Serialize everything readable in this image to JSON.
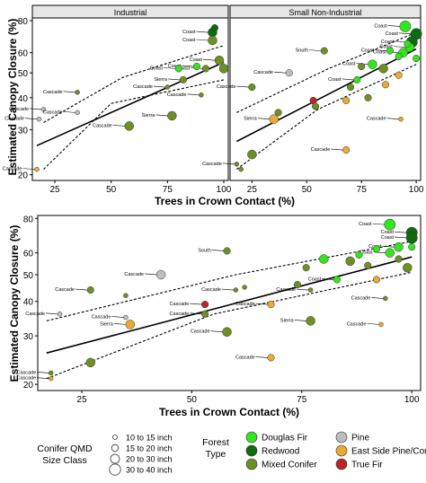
{
  "figure": {
    "ylabel": "Estimated Canopy Closure (%)",
    "xlabel": "Trees in Crown Contact (%)"
  },
  "colors": {
    "Douglas Fir": "#33e51f",
    "Redwood": "#0f6b0f",
    "Mixed Conifer": "#6f8f25",
    "Pine": "#bdbdbd",
    "East Side Pine/Con": "#e9a935",
    "True Fir": "#b8262a"
  },
  "legend": {
    "size_title": [
      "Conifer QMD",
      "Size Class"
    ],
    "size_items": [
      {
        "label": "10 to 15 inch",
        "r": 2.5
      },
      {
        "label": "15 to 20 inch",
        "r": 3.8
      },
      {
        "label": "20 to 30 inch",
        "r": 5.0
      },
      {
        "label": "30 to 40 inch",
        "r": 6.2
      }
    ],
    "type_title": [
      "Forest",
      "Type"
    ],
    "type_items": [
      "Douglas Fir",
      "Redwood",
      "Mixed Conifer",
      "Pine",
      "East Side Pine/Con",
      "True Fir"
    ]
  },
  "chart_data": [
    {
      "type": "scatter",
      "title": "Industrial",
      "x_ticks": [
        25,
        50,
        75,
        100
      ],
      "y_ticks": [
        20,
        30,
        40,
        50,
        60,
        80
      ],
      "xlim": [
        15,
        102
      ],
      "ylim": [
        19,
        82
      ],
      "y_scale": "log",
      "fit_line": [
        [
          17,
          26
        ],
        [
          100,
          55
        ]
      ],
      "ci_upper": [
        [
          20,
          32
        ],
        [
          55,
          48
        ],
        [
          100,
          64
        ]
      ],
      "ci_lower": [
        [
          20,
          21
        ],
        [
          50,
          38
        ],
        [
          100,
          47
        ]
      ],
      "points": [
        {
          "x": 95,
          "y": 72,
          "type": "Redwood",
          "size": 3,
          "label": "Coast"
        },
        {
          "x": 95,
          "y": 67,
          "type": "Mixed Conifer",
          "size": 3,
          "label": "Coast"
        },
        {
          "x": 96,
          "y": 75,
          "type": "Redwood",
          "size": 2,
          "label": ""
        },
        {
          "x": 98,
          "y": 56,
          "type": "Mixed Conifer",
          "size": 3,
          "label": "Coast"
        },
        {
          "x": 92,
          "y": 52,
          "type": "Mixed Conifer",
          "size": 2,
          "label": "Coast"
        },
        {
          "x": 88,
          "y": 53,
          "type": "Douglas Fir",
          "size": 2,
          "label": "Coast"
        },
        {
          "x": 100,
          "y": 52,
          "type": "Mixed Conifer",
          "size": 3,
          "label": ""
        },
        {
          "x": 80,
          "y": 52,
          "type": "Douglas Fir",
          "size": 2,
          "label": "Coast"
        },
        {
          "x": 82,
          "y": 47,
          "type": "Mixed Conifer",
          "size": 2,
          "label": "Sierra"
        },
        {
          "x": 75,
          "y": 44,
          "type": "Mixed Conifer",
          "size": 1,
          "label": "Cascade"
        },
        {
          "x": 90,
          "y": 41,
          "type": "Mixed Conifer",
          "size": 1,
          "label": "Cascade"
        },
        {
          "x": 35,
          "y": 42,
          "type": "Mixed Conifer",
          "size": 1,
          "label": "Cascade"
        },
        {
          "x": 20,
          "y": 36,
          "type": "Pine",
          "size": 1,
          "label": "Cascade"
        },
        {
          "x": 35,
          "y": 35,
          "type": "Pine",
          "size": 1,
          "label": "Cascade"
        },
        {
          "x": 18,
          "y": 33,
          "type": "Pine",
          "size": 1,
          "label": "Cascade"
        },
        {
          "x": 77,
          "y": 34,
          "type": "Mixed Conifer",
          "size": 3,
          "label": "Sierra"
        },
        {
          "x": 58,
          "y": 31,
          "type": "Mixed Conifer",
          "size": 3,
          "label": "Cascade"
        },
        {
          "x": 17,
          "y": 21,
          "type": "East Side Pine/Con",
          "size": 1,
          "label": "Cascade"
        }
      ]
    },
    {
      "type": "scatter",
      "title": "Small Non-Industrial",
      "x_ticks": [
        25,
        50,
        75,
        100
      ],
      "y_ticks": [
        20,
        30,
        40,
        50,
        60,
        80
      ],
      "xlim": [
        15,
        102
      ],
      "ylim": [
        19,
        82
      ],
      "y_scale": "log",
      "fit_line": [
        [
          18,
          27
        ],
        [
          100,
          62
        ]
      ],
      "ci_upper": [
        [
          18,
          35
        ],
        [
          60,
          52
        ],
        [
          100,
          72
        ]
      ],
      "ci_lower": [
        [
          18,
          21
        ],
        [
          55,
          36
        ],
        [
          100,
          54
        ]
      ],
      "points": [
        {
          "x": 95,
          "y": 76,
          "type": "Douglas Fir",
          "size": 4,
          "label": "Coast"
        },
        {
          "x": 100,
          "y": 71,
          "type": "Redwood",
          "size": 4,
          "label": "Coast"
        },
        {
          "x": 98,
          "y": 66,
          "type": "Redwood",
          "size": 4,
          "label": "Coast"
        },
        {
          "x": 97,
          "y": 63,
          "type": "Douglas Fir",
          "size": 3,
          "label": "Coast"
        },
        {
          "x": 94,
          "y": 60,
          "type": "Douglas Fir",
          "size": 3,
          "label": "Coast"
        },
        {
          "x": 88,
          "y": 61,
          "type": "Douglas Fir",
          "size": 2,
          "label": "Coast"
        },
        {
          "x": 96,
          "y": 65,
          "type": "Douglas Fir",
          "size": 2,
          "label": ""
        },
        {
          "x": 100,
          "y": 57,
          "type": "Douglas Fir",
          "size": 2,
          "label": ""
        },
        {
          "x": 92,
          "y": 58,
          "type": "Douglas Fir",
          "size": 2,
          "label": ""
        },
        {
          "x": 58,
          "y": 61,
          "type": "Mixed Conifer",
          "size": 2,
          "label": "South"
        },
        {
          "x": 42,
          "y": 50,
          "type": "Pine",
          "size": 2,
          "label": "Cascade"
        },
        {
          "x": 80,
          "y": 54,
          "type": "Douglas Fir",
          "size": 3,
          "label": "Coast"
        },
        {
          "x": 85,
          "y": 52,
          "type": "Mixed Conifer",
          "size": 3,
          "label": ""
        },
        {
          "x": 75,
          "y": 53,
          "type": "Mixed Conifer",
          "size": 2,
          "label": ""
        },
        {
          "x": 92,
          "y": 49,
          "type": "East Side Pine/Con",
          "size": 2,
          "label": ""
        },
        {
          "x": 73,
          "y": 47,
          "type": "Douglas Fir",
          "size": 2,
          "label": "Coast"
        },
        {
          "x": 70,
          "y": 44,
          "type": "Mixed Conifer",
          "size": 2,
          "label": ""
        },
        {
          "x": 86,
          "y": 45,
          "type": "East Side Pine/Con",
          "size": 2,
          "label": ""
        },
        {
          "x": 25,
          "y": 44,
          "type": "Mixed Conifer",
          "size": 2,
          "label": "Cascade"
        },
        {
          "x": 53,
          "y": 39,
          "type": "True Fir",
          "size": 2,
          "label": ""
        },
        {
          "x": 54,
          "y": 37,
          "type": "Mixed Conifer",
          "size": 2,
          "label": ""
        },
        {
          "x": 68,
          "y": 39,
          "type": "East Side Pine/Con",
          "size": 2,
          "label": ""
        },
        {
          "x": 78,
          "y": 40,
          "type": "Mixed Conifer",
          "size": 2,
          "label": ""
        },
        {
          "x": 35,
          "y": 33,
          "type": "East Side Pine/Con",
          "size": 3,
          "label": "Sierra"
        },
        {
          "x": 37,
          "y": 35,
          "type": "Mixed Conifer",
          "size": 2,
          "label": ""
        },
        {
          "x": 93,
          "y": 33,
          "type": "East Side Pine/Con",
          "size": 1,
          "label": "Cascade"
        },
        {
          "x": 68,
          "y": 25,
          "type": "East Side Pine/Con",
          "size": 2,
          "label": "Cascade"
        },
        {
          "x": 25,
          "y": 24,
          "type": "Mixed Conifer",
          "size": 3,
          "label": ""
        },
        {
          "x": 18,
          "y": 22,
          "type": "Mixed Conifer",
          "size": 1,
          "label": "Cascade"
        },
        {
          "x": 20,
          "y": 21,
          "type": "Mixed Conifer",
          "size": 1,
          "label": ""
        }
      ]
    },
    {
      "type": "scatter",
      "title": "",
      "x_ticks": [
        25,
        50,
        75,
        100
      ],
      "y_ticks": [
        20,
        30,
        40,
        50,
        60,
        80
      ],
      "xlim": [
        15,
        102
      ],
      "ylim": [
        19,
        82
      ],
      "y_scale": "log",
      "fit_line": [
        [
          17,
          26
        ],
        [
          100,
          58
        ]
      ],
      "ci_upper": [
        [
          17,
          34
        ],
        [
          60,
          50
        ],
        [
          100,
          66
        ]
      ],
      "ci_lower": [
        [
          17,
          21
        ],
        [
          55,
          36
        ],
        [
          100,
          51
        ]
      ],
      "points": [
        {
          "x": 95,
          "y": 76,
          "type": "Douglas Fir",
          "size": 4,
          "label": "Coast"
        },
        {
          "x": 100,
          "y": 71,
          "type": "Redwood",
          "size": 4,
          "label": "Coast"
        },
        {
          "x": 100,
          "y": 68,
          "type": "Redwood",
          "size": 4,
          "label": "Coast"
        },
        {
          "x": 97,
          "y": 63,
          "type": "Douglas Fir",
          "size": 3,
          "label": "Coast"
        },
        {
          "x": 95,
          "y": 60,
          "type": "Douglas Fir",
          "size": 3,
          "label": "Coast"
        },
        {
          "x": 100,
          "y": 63,
          "type": "Douglas Fir",
          "size": 2,
          "label": ""
        },
        {
          "x": 92,
          "y": 62,
          "type": "Douglas Fir",
          "size": 2,
          "label": ""
        },
        {
          "x": 88,
          "y": 59,
          "type": "Douglas Fir",
          "size": 2,
          "label": ""
        },
        {
          "x": 58,
          "y": 61,
          "type": "Mixed Conifer",
          "size": 2,
          "label": "South"
        },
        {
          "x": 43,
          "y": 50,
          "type": "Pine",
          "size": 3,
          "label": "Cascade"
        },
        {
          "x": 80,
          "y": 57,
          "type": "Douglas Fir",
          "size": 3,
          "label": ""
        },
        {
          "x": 86,
          "y": 56,
          "type": "Mixed Conifer",
          "size": 3,
          "label": ""
        },
        {
          "x": 99,
          "y": 53,
          "type": "Mixed Conifer",
          "size": 3,
          "label": ""
        },
        {
          "x": 76,
          "y": 53,
          "type": "Mixed Conifer",
          "size": 2,
          "label": ""
        },
        {
          "x": 90,
          "y": 54,
          "type": "Mixed Conifer",
          "size": 2,
          "label": ""
        },
        {
          "x": 97,
          "y": 57,
          "type": "Mixed Conifer",
          "size": 2,
          "label": ""
        },
        {
          "x": 92,
          "y": 48,
          "type": "East Side Pine/Con",
          "size": 2,
          "label": ""
        },
        {
          "x": 83,
          "y": 48,
          "type": "Douglas Fir",
          "size": 2,
          "label": "Coast"
        },
        {
          "x": 74,
          "y": 46,
          "type": "Mixed Conifer",
          "size": 2,
          "label": ""
        },
        {
          "x": 77,
          "y": 44,
          "type": "Mixed Conifer",
          "size": 1,
          "label": "Cascade"
        },
        {
          "x": 62,
          "y": 45,
          "type": "Mixed Conifer",
          "size": 1,
          "label": ""
        },
        {
          "x": 60,
          "y": 44,
          "type": "Mixed Conifer",
          "size": 1,
          "label": "Cascade"
        },
        {
          "x": 27,
          "y": 44,
          "type": "Mixed Conifer",
          "size": 2,
          "label": "Cascade"
        },
        {
          "x": 35,
          "y": 42,
          "type": "Mixed Conifer",
          "size": 1,
          "label": ""
        },
        {
          "x": 94,
          "y": 41,
          "type": "Mixed Conifer",
          "size": 1,
          "label": "Cascade"
        },
        {
          "x": 53,
          "y": 39,
          "type": "True Fir",
          "size": 2,
          "label": "Cascade"
        },
        {
          "x": 68,
          "y": 39,
          "type": "East Side Pine/Con",
          "size": 2,
          "label": "Cascade"
        },
        {
          "x": 53,
          "y": 36,
          "type": "Mixed Conifer",
          "size": 2,
          "label": "Cascade"
        },
        {
          "x": 35,
          "y": 35,
          "type": "Pine",
          "size": 1,
          "label": "Cascade"
        },
        {
          "x": 20,
          "y": 36,
          "type": "Pine",
          "size": 1,
          "label": "Cascade"
        },
        {
          "x": 77,
          "y": 34,
          "type": "Mixed Conifer",
          "size": 3,
          "label": "Sierra"
        },
        {
          "x": 36,
          "y": 33,
          "type": "East Side Pine/Con",
          "size": 3,
          "label": "Sierra"
        },
        {
          "x": 93,
          "y": 33,
          "type": "East Side Pine/Con",
          "size": 1,
          "label": "Cascade"
        },
        {
          "x": 58,
          "y": 31,
          "type": "Mixed Conifer",
          "size": 3,
          "label": "Cascade"
        },
        {
          "x": 68,
          "y": 25,
          "type": "East Side Pine/Con",
          "size": 2,
          "label": "Cascade"
        },
        {
          "x": 27,
          "y": 24,
          "type": "Mixed Conifer",
          "size": 3,
          "label": ""
        },
        {
          "x": 18,
          "y": 22,
          "type": "Mixed Conifer",
          "size": 1,
          "label": "Cascade"
        },
        {
          "x": 18,
          "y": 21,
          "type": "East Side Pine/Con",
          "size": 1,
          "label": "Cascade"
        }
      ]
    }
  ]
}
